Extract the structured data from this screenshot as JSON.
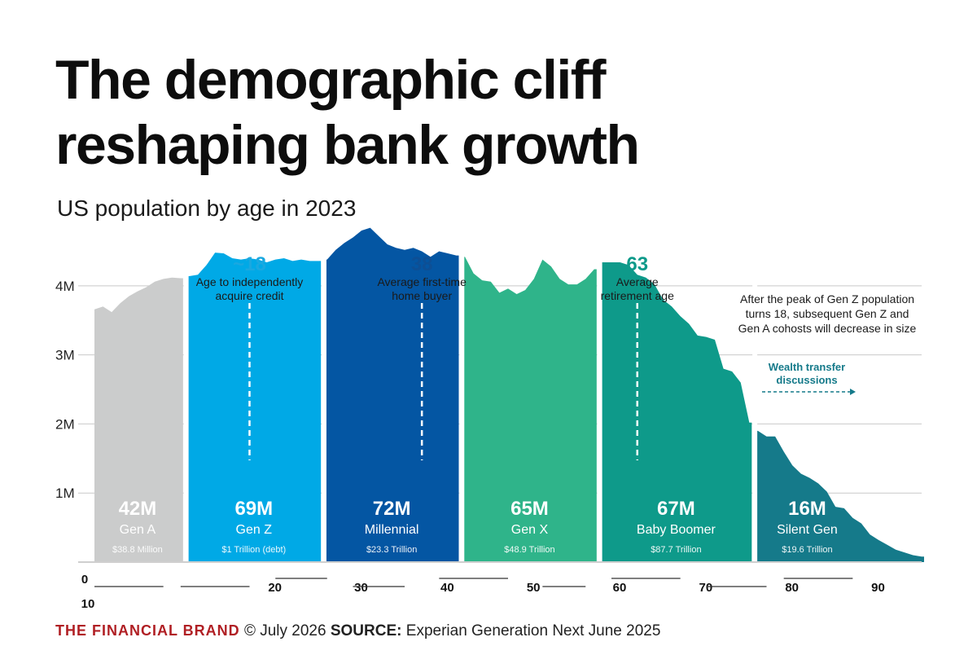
{
  "title_lines": [
    "The demographic cliff",
    "reshaping bank growth"
  ],
  "subtitle": "US population by age in 2023",
  "footer": {
    "brand": "THE FINANCIAL BRAND",
    "date": "© July 2026",
    "source_label": "SOURCE:",
    "source": "Experian Generation Next June 2025"
  },
  "chart_data": {
    "type": "area",
    "x_ticks": [
      {
        "value": 0,
        "label": "0"
      },
      {
        "value": 10,
        "label": "10"
      },
      {
        "value": 20,
        "label": "20"
      },
      {
        "value": 30,
        "label": "30"
      },
      {
        "value": 40,
        "label": "40"
      },
      {
        "value": 50,
        "label": "50"
      },
      {
        "value": 60,
        "label": "60"
      },
      {
        "value": 70,
        "label": "70"
      },
      {
        "value": 80,
        "label": "80"
      },
      {
        "value": 90,
        "label": "90"
      }
    ],
    "y_ticks": [
      {
        "value": 1,
        "label": "1M"
      },
      {
        "value": 2,
        "label": "2M"
      },
      {
        "value": 3,
        "label": "3M"
      },
      {
        "value": 4,
        "label": "4M"
      }
    ],
    "x_range": [
      0,
      96
    ],
    "y_range": [
      0,
      4.6
    ],
    "grid": true,
    "segments": [
      {
        "name": "Gen A",
        "total": "42M",
        "wealth": "$38.8 Million",
        "color": "#cbcccc",
        "label_color": "#ffffff",
        "points": [
          [
            0,
            3.66
          ],
          [
            1,
            3.7
          ],
          [
            2,
            3.62
          ],
          [
            3,
            3.75
          ],
          [
            4,
            3.85
          ],
          [
            5,
            3.92
          ],
          [
            6,
            3.98
          ],
          [
            7,
            4.06
          ],
          [
            8,
            4.1
          ],
          [
            9,
            4.12
          ],
          [
            10,
            4.11
          ]
        ]
      },
      {
        "name": "Gen Z",
        "total": "69M",
        "wealth": "$1 Trillion (debt)",
        "color": "#00a9e6",
        "label_color": "#ffffff",
        "points": [
          [
            11,
            4.14
          ],
          [
            12,
            4.16
          ],
          [
            13,
            4.3
          ],
          [
            14,
            4.48
          ],
          [
            15,
            4.47
          ],
          [
            16,
            4.4
          ],
          [
            17,
            4.38
          ],
          [
            18,
            4.4
          ],
          [
            19,
            4.38
          ],
          [
            20,
            4.34
          ],
          [
            21,
            4.38
          ],
          [
            22,
            4.4
          ],
          [
            23,
            4.36
          ],
          [
            24,
            4.38
          ],
          [
            25,
            4.36
          ],
          [
            26,
            4.36
          ]
        ]
      },
      {
        "name": "Millennial",
        "total": "72M",
        "wealth": "$23.3 Trillion",
        "color": "#0456a3",
        "label_color": "#ffffff",
        "points": [
          [
            27,
            4.38
          ],
          [
            28,
            4.52
          ],
          [
            29,
            4.62
          ],
          [
            30,
            4.7
          ],
          [
            31,
            4.8
          ],
          [
            32,
            4.84
          ],
          [
            33,
            4.72
          ],
          [
            34,
            4.6
          ],
          [
            35,
            4.55
          ],
          [
            36,
            4.52
          ],
          [
            37,
            4.55
          ],
          [
            38,
            4.5
          ],
          [
            39,
            4.42
          ],
          [
            40,
            4.5
          ],
          [
            41,
            4.47
          ],
          [
            42,
            4.44
          ]
        ]
      },
      {
        "name": "Gen X",
        "total": "65M",
        "wealth": "$48.9 Trillion",
        "color": "#2fb48a",
        "label_color": "#ffffff",
        "points": [
          [
            43,
            4.42
          ],
          [
            44,
            4.18
          ],
          [
            45,
            4.08
          ],
          [
            46,
            4.06
          ],
          [
            47,
            3.9
          ],
          [
            48,
            3.96
          ],
          [
            49,
            3.88
          ],
          [
            50,
            3.94
          ],
          [
            51,
            4.1
          ],
          [
            52,
            4.38
          ],
          [
            53,
            4.28
          ],
          [
            54,
            4.1
          ],
          [
            55,
            4.02
          ],
          [
            56,
            4.02
          ],
          [
            57,
            4.1
          ],
          [
            58,
            4.24
          ]
        ]
      },
      {
        "name": "Baby Boomer",
        "total": "67M",
        "wealth": "$87.7 Trillion",
        "color": "#0e9a8a",
        "label_color": "#ffffff",
        "points": [
          [
            59,
            4.34
          ],
          [
            60,
            4.34
          ],
          [
            61,
            4.34
          ],
          [
            62,
            4.3
          ],
          [
            63,
            4.16
          ],
          [
            64,
            4.12
          ],
          [
            65,
            4.02
          ],
          [
            66,
            3.8
          ],
          [
            67,
            3.7
          ],
          [
            68,
            3.56
          ],
          [
            69,
            3.45
          ],
          [
            70,
            3.28
          ],
          [
            71,
            3.26
          ],
          [
            72,
            3.22
          ],
          [
            73,
            2.8
          ],
          [
            74,
            2.76
          ],
          [
            75,
            2.6
          ],
          [
            76,
            2.02
          ]
        ]
      },
      {
        "name": "Silent Gen",
        "total": "16M",
        "wealth": "$19.6 Trillion",
        "color": "#157a8a",
        "label_color": "#ffffff",
        "points": [
          [
            77,
            1.9
          ],
          [
            78,
            1.82
          ],
          [
            79,
            1.82
          ],
          [
            80,
            1.6
          ],
          [
            81,
            1.4
          ],
          [
            82,
            1.28
          ],
          [
            83,
            1.22
          ],
          [
            84,
            1.14
          ],
          [
            85,
            1.02
          ],
          [
            86,
            0.8
          ],
          [
            87,
            0.78
          ],
          [
            88,
            0.64
          ],
          [
            89,
            0.56
          ],
          [
            90,
            0.4
          ],
          [
            91,
            0.32
          ],
          [
            92,
            0.25
          ],
          [
            93,
            0.18
          ],
          [
            94,
            0.14
          ],
          [
            95,
            0.1
          ],
          [
            96,
            0.08
          ]
        ]
      }
    ],
    "markers": [
      {
        "age": 18,
        "value_label": "~18",
        "text": [
          "Age to independently",
          "acquire credit"
        ],
        "color": "#1aa8e0"
      },
      {
        "age": 38,
        "value_label": "38",
        "text": [
          "Average first-time",
          "home buyer"
        ],
        "color": "#0d4f95"
      },
      {
        "age": 63,
        "value_label": "63",
        "text": [
          "Average",
          "retirement age"
        ],
        "color": "#0e9a8a"
      }
    ],
    "annotations": [
      {
        "id": "gen-z-note",
        "text": [
          "After the peak of Gen Z population",
          "turns 18, subsequent Gen Z and",
          "Gen A cohosts will decrease in size"
        ],
        "color": "#1a1a1a"
      },
      {
        "id": "wealth-transfer",
        "text": [
          "Wealth transfer",
          "discussions"
        ],
        "color": "#157a8a"
      }
    ]
  }
}
